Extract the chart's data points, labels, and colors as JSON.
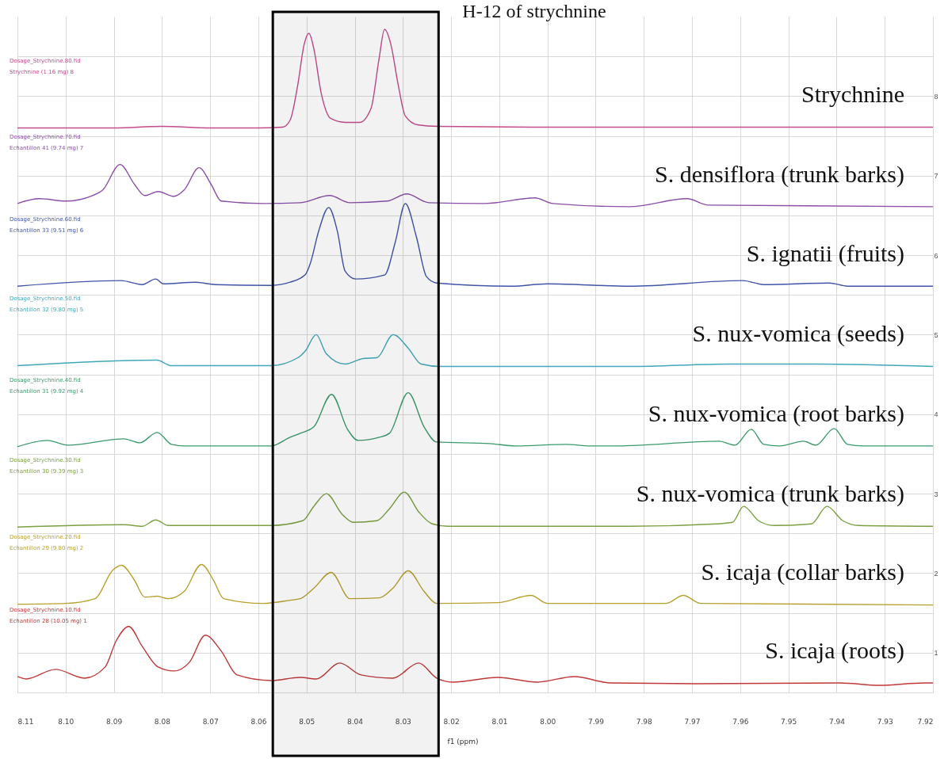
{
  "chart_data": {
    "type": "line",
    "xlabel": "f1 (ppm)",
    "xlim": [
      8.11,
      7.92
    ],
    "xticks": [
      8.11,
      {
        "value": 8.1,
        "label": "8.10"
      },
      8.09,
      8.08,
      8.07,
      8.06,
      8.05,
      8.04,
      8.03,
      8.02,
      8.01,
      {
        "value": 8.0,
        "label": "8.00"
      },
      7.99,
      7.98,
      7.97,
      7.96,
      7.95,
      7.94,
      7.93,
      {
        "value": 7.92,
        "label": "7.92"
      }
    ],
    "ylim": [
      0.5,
      9.0
    ],
    "yticks": [
      {
        "value": 0.5,
        "label": null
      },
      1,
      {
        "value": 1.5,
        "label": null
      },
      2,
      {
        "value": 2.5,
        "label": null
      },
      3,
      {
        "value": 3.5,
        "label": null
      },
      4,
      {
        "value": 4.5,
        "label": null
      },
      5,
      {
        "value": 5.5,
        "label": null
      },
      6,
      {
        "value": 6.5,
        "label": null
      },
      7,
      {
        "value": 7.5,
        "label": null
      },
      8,
      {
        "value": 8.5,
        "label": null
      }
    ],
    "grid": true,
    "bands": [
      {
        "axis": "x",
        "from": 8.057,
        "to": 8.0226,
        "label": "H-12 of strychnine",
        "color": "#000000"
      }
    ],
    "annotations": [
      "Dosage_Strychnine.80.fid",
      "Strychnine (1.16 mg) 8",
      "Dosage_Strychnine.70.fid",
      "Echantillon 41 (9.74 mg) 7",
      "Dosage_Strychnine.60.fid",
      "Echantillon 33 (9.51 mg) 6",
      "Dosage_Strychnine.50.fid",
      "Echantillon 32 (9.80 mg) 5",
      "Dosage_Strychnine.40.fid",
      "Echantillon 31 (9.92 mg) 4",
      "Dosage_Strychnine.30.fid",
      "Echantillon 30 (9.39 mg) 3",
      "Dosage_Strychnine.20.fid",
      "Echantillon 29 (9.80 mg) 2",
      "Dosage_Strychnine.10.fid",
      "Echantillon 28 (10.05 mg) 1"
    ],
    "series": [
      {
        "name": "Strychnine",
        "color": "#c44b8c",
        "x": [
          8.11,
          8.09,
          8.08,
          8.07,
          8.06,
          8.055,
          8.0534,
          8.0518,
          8.0505,
          8.0495,
          8.0485,
          8.047,
          8.045,
          8.042,
          8.039,
          8.0366,
          8.035,
          8.0338,
          8.0325,
          8.031,
          8.0295,
          8.027,
          8.0226,
          8.0,
          7.96,
          7.92
        ],
        "values": [
          7.6,
          7.6,
          7.62,
          7.6,
          7.6,
          7.61,
          7.7,
          8.15,
          8.65,
          8.79,
          8.6,
          8.05,
          7.72,
          7.67,
          7.67,
          7.85,
          8.45,
          8.84,
          8.65,
          8.15,
          7.75,
          7.64,
          7.62,
          7.61,
          7.61,
          7.61
        ]
      },
      {
        "name": "S. densiflora (trunk barks)",
        "color": "#8b4fa8",
        "x": [
          8.11,
          8.1054,
          8.1,
          8.0944,
          8.0923,
          8.0887,
          8.0857,
          8.0836,
          8.0808,
          8.0775,
          8.0754,
          8.0723,
          8.0698,
          8.0677,
          8.059,
          8.0513,
          8.0452,
          8.041,
          8.0333,
          8.0292,
          8.0246,
          8.0131,
          8.0026,
          7.9989,
          7.983,
          7.971,
          7.9666,
          7.92
        ],
        "values": [
          6.65,
          6.71,
          6.68,
          6.75,
          6.82,
          7.14,
          6.89,
          6.75,
          6.8,
          6.74,
          6.82,
          7.1,
          6.89,
          6.68,
          6.65,
          6.66,
          6.75,
          6.66,
          6.68,
          6.77,
          6.66,
          6.65,
          6.72,
          6.65,
          6.61,
          6.71,
          6.63,
          6.61
        ]
      },
      {
        "name": "S. ignatii (fruits)",
        "color": "#4055a8",
        "x": [
          8.11,
          8.0885,
          8.0841,
          8.0813,
          8.0797,
          8.0731,
          8.0689,
          8.0574,
          8.0534,
          8.0502,
          8.0492,
          8.0475,
          8.0454,
          8.0436,
          8.042,
          8.0398,
          8.0338,
          8.0316,
          8.0295,
          8.0272,
          8.0251,
          8.023,
          8.0075,
          8.0,
          7.983,
          7.9595,
          7.9551,
          7.9415,
          7.9377,
          7.92
        ],
        "values": [
          5.61,
          5.68,
          5.63,
          5.7,
          5.64,
          5.66,
          5.63,
          5.62,
          5.66,
          5.76,
          5.9,
          6.3,
          6.6,
          6.3,
          5.8,
          5.7,
          5.75,
          6.16,
          6.65,
          6.23,
          5.73,
          5.65,
          5.61,
          5.64,
          5.61,
          5.68,
          5.63,
          5.65,
          5.61,
          5.61
        ]
      },
      {
        "name": "S. nux-vomica (seeds)",
        "color": "#40a8b8",
        "x": [
          8.11,
          8.0811,
          8.078,
          8.0574,
          8.0518,
          8.0502,
          8.048,
          8.0459,
          8.042,
          8.0382,
          8.0354,
          8.032,
          8.0289,
          8.0262,
          8.0223,
          7.983,
          7.962,
          7.9443,
          7.92
        ],
        "values": [
          4.61,
          4.68,
          4.61,
          4.61,
          4.71,
          4.8,
          5.0,
          4.76,
          4.63,
          4.7,
          4.71,
          5.0,
          4.83,
          4.63,
          4.6,
          4.6,
          4.63,
          4.63,
          4.6
        ]
      },
      {
        "name": "S. nux-vomica (root barks)",
        "color": "#3a9a6a",
        "x": [
          8.11,
          8.1038,
          8.0995,
          8.0879,
          8.0846,
          8.081,
          8.078,
          8.0754,
          8.0574,
          8.0534,
          8.0513,
          8.0485,
          8.0448,
          8.0415,
          8.0393,
          8.0349,
          8.0328,
          8.0289,
          8.0256,
          8.023,
          8.012,
          8.0066,
          7.9961,
          7.9911,
          7.9857,
          7.9644,
          7.9611,
          7.9577,
          7.9551,
          7.9518,
          7.9469,
          7.9443,
          7.9405,
          7.9377,
          7.9344,
          7.92
        ],
        "values": [
          3.59,
          3.67,
          3.61,
          3.69,
          3.64,
          3.77,
          3.62,
          3.6,
          3.6,
          3.71,
          3.76,
          3.84,
          4.25,
          3.81,
          3.67,
          3.71,
          3.76,
          4.27,
          3.84,
          3.65,
          3.63,
          3.6,
          3.62,
          3.6,
          3.6,
          3.66,
          3.61,
          3.81,
          3.62,
          3.6,
          3.66,
          3.61,
          3.82,
          3.62,
          3.6,
          3.6
        ]
      },
      {
        "name": "S. nux-vomica (trunk barks)",
        "color": "#7aa040",
        "x": [
          8.11,
          8.0879,
          8.0841,
          8.0813,
          8.0787,
          8.0574,
          8.0508,
          8.0485,
          8.0459,
          8.0426,
          8.0403,
          8.0354,
          8.0328,
          8.0297,
          8.0267,
          8.0239,
          8.0207,
          7.983,
          7.9649,
          7.9616,
          7.9593,
          7.9562,
          7.953,
          7.9452,
          7.942,
          7.9387,
          7.9354,
          7.92
        ],
        "values": [
          2.58,
          2.61,
          2.59,
          2.67,
          2.6,
          2.6,
          2.66,
          2.84,
          3.0,
          2.74,
          2.64,
          2.66,
          2.81,
          3.02,
          2.77,
          2.62,
          2.59,
          2.59,
          2.62,
          2.64,
          2.84,
          2.66,
          2.6,
          2.62,
          2.84,
          2.66,
          2.6,
          2.59
        ]
      },
      {
        "name": "S. icaja (collar barks)",
        "color": "#b8a030",
        "x": [
          8.11,
          8.1,
          8.0939,
          8.0902,
          8.0884,
          8.0857,
          8.0836,
          8.081,
          8.0787,
          8.0754,
          8.0718,
          8.0693,
          8.0672,
          8.059,
          8.0534,
          8.0513,
          8.0485,
          8.0449,
          8.041,
          8.0349,
          8.0321,
          8.0289,
          8.0256,
          8.023,
          8.0103,
          8.0034,
          8.0,
          7.9754,
          7.9718,
          7.9682,
          7.92
        ],
        "values": [
          1.61,
          1.62,
          1.68,
          2.04,
          2.1,
          1.91,
          1.7,
          1.71,
          1.68,
          1.77,
          2.11,
          1.91,
          1.68,
          1.62,
          1.66,
          1.68,
          1.81,
          2.01,
          1.68,
          1.69,
          1.81,
          2.03,
          1.77,
          1.62,
          1.63,
          1.72,
          1.62,
          1.62,
          1.72,
          1.62,
          1.6
        ]
      },
      {
        "name": "S. icaja (roots)",
        "color": "#c03838",
        "x": [
          8.11,
          8.1082,
          8.1021,
          8.0961,
          8.0918,
          8.0895,
          8.0869,
          8.0841,
          8.0808,
          8.0775,
          8.0743,
          8.071,
          8.0677,
          8.0644,
          8.0574,
          8.0513,
          8.048,
          8.0431,
          8.0387,
          8.0321,
          8.0267,
          8.023,
          8.0197,
          8.0103,
          8.0021,
          7.9944,
          7.9869,
          7.9693,
          7.9393,
          7.9311,
          7.9218,
          7.92
        ],
        "values": [
          0.7,
          0.67,
          0.79,
          0.68,
          0.82,
          1.15,
          1.33,
          1.08,
          0.82,
          0.77,
          0.88,
          1.22,
          1.02,
          0.72,
          0.65,
          0.69,
          0.67,
          0.87,
          0.72,
          0.68,
          0.87,
          0.68,
          0.63,
          0.69,
          0.63,
          0.7,
          0.62,
          0.61,
          0.62,
          0.59,
          0.62,
          0.62
        ]
      }
    ]
  }
}
